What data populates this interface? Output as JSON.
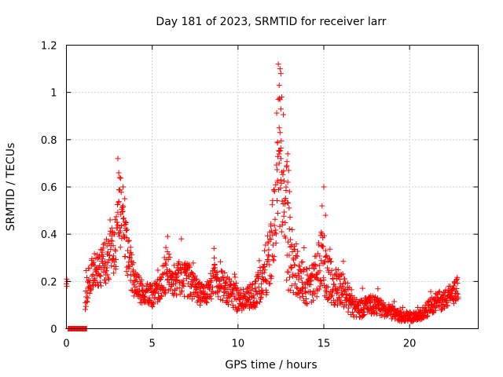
{
  "chart_data": {
    "type": "scatter",
    "title": "Day 181 of 2023, SRMTID for receiver larr",
    "xlabel": "GPS time / hours",
    "ylabel": "SRMTID / TECUs",
    "xlim": [
      0,
      24
    ],
    "ylim": [
      0,
      1.2
    ],
    "xticks": [
      0,
      5,
      10,
      15,
      20
    ],
    "yticks": [
      0,
      0.2,
      0.4,
      0.6,
      0.8,
      1.0,
      1.2
    ],
    "xtick_labels": [
      "0",
      "5",
      "10",
      "15",
      "20"
    ],
    "ytick_labels": [
      "0",
      "0.2",
      "0.4",
      "0.6",
      "0.8",
      "1",
      "1.2"
    ],
    "grid": true,
    "marker": "+",
    "series": [
      {
        "name": "SRMTID",
        "color": "#ff0000",
        "profile": [
          [
            0.0,
            0.2,
            0.02
          ],
          [
            0.15,
            0.2,
            0.02
          ],
          [
            1.1,
            0.16,
            0.08
          ],
          [
            1.5,
            0.24,
            0.07
          ],
          [
            2.0,
            0.26,
            0.08
          ],
          [
            2.5,
            0.3,
            0.1
          ],
          [
            2.9,
            0.38,
            0.14
          ],
          [
            3.1,
            0.5,
            0.16
          ],
          [
            3.3,
            0.42,
            0.12
          ],
          [
            3.6,
            0.3,
            0.1
          ],
          [
            4.0,
            0.18,
            0.06
          ],
          [
            4.5,
            0.15,
            0.05
          ],
          [
            5.0,
            0.14,
            0.05
          ],
          [
            5.5,
            0.17,
            0.05
          ],
          [
            5.8,
            0.25,
            0.1
          ],
          [
            6.2,
            0.2,
            0.07
          ],
          [
            6.7,
            0.22,
            0.08
          ],
          [
            7.2,
            0.2,
            0.07
          ],
          [
            7.7,
            0.15,
            0.05
          ],
          [
            8.2,
            0.15,
            0.05
          ],
          [
            8.6,
            0.22,
            0.08
          ],
          [
            9.0,
            0.18,
            0.07
          ],
          [
            9.5,
            0.16,
            0.06
          ],
          [
            10.0,
            0.12,
            0.05
          ],
          [
            10.5,
            0.13,
            0.05
          ],
          [
            11.0,
            0.15,
            0.06
          ],
          [
            11.5,
            0.22,
            0.1
          ],
          [
            11.9,
            0.32,
            0.14
          ],
          [
            12.2,
            0.5,
            0.2
          ],
          [
            12.4,
            0.75,
            0.3
          ],
          [
            12.6,
            0.5,
            0.22
          ],
          [
            12.9,
            0.35,
            0.2
          ],
          [
            13.2,
            0.28,
            0.14
          ],
          [
            13.6,
            0.22,
            0.1
          ],
          [
            14.0,
            0.18,
            0.08
          ],
          [
            14.5,
            0.2,
            0.08
          ],
          [
            14.9,
            0.3,
            0.14
          ],
          [
            15.2,
            0.22,
            0.1
          ],
          [
            15.6,
            0.18,
            0.08
          ],
          [
            16.0,
            0.18,
            0.08
          ],
          [
            16.5,
            0.12,
            0.06
          ],
          [
            17.0,
            0.08,
            0.04
          ],
          [
            17.5,
            0.1,
            0.04
          ],
          [
            18.0,
            0.1,
            0.04
          ],
          [
            18.5,
            0.08,
            0.03
          ],
          [
            19.0,
            0.07,
            0.03
          ],
          [
            19.5,
            0.05,
            0.02
          ],
          [
            20.0,
            0.05,
            0.02
          ],
          [
            20.5,
            0.05,
            0.02
          ],
          [
            21.0,
            0.08,
            0.03
          ],
          [
            21.5,
            0.11,
            0.04
          ],
          [
            22.0,
            0.12,
            0.04
          ],
          [
            22.5,
            0.15,
            0.05
          ],
          [
            22.8,
            0.17,
            0.05
          ]
        ],
        "peaks": [
          [
            3.0,
            0.72
          ],
          [
            3.05,
            0.66
          ],
          [
            3.1,
            0.64
          ],
          [
            3.3,
            0.6
          ],
          [
            3.4,
            0.55
          ],
          [
            5.9,
            0.39
          ],
          [
            6.7,
            0.38
          ],
          [
            8.6,
            0.34
          ],
          [
            12.35,
            1.12
          ],
          [
            12.45,
            1.1
          ],
          [
            12.5,
            1.08
          ],
          [
            12.4,
            1.03
          ],
          [
            12.55,
            0.98
          ],
          [
            12.5,
            0.93
          ],
          [
            12.4,
            0.85
          ],
          [
            12.45,
            0.83
          ],
          [
            12.3,
            0.79
          ],
          [
            12.5,
            0.72
          ],
          [
            12.4,
            0.7
          ],
          [
            12.3,
            0.62
          ],
          [
            12.9,
            0.74
          ],
          [
            12.85,
            0.69
          ],
          [
            12.95,
            0.67
          ],
          [
            12.9,
            0.62
          ],
          [
            13.0,
            0.58
          ],
          [
            15.0,
            0.6
          ],
          [
            14.9,
            0.52
          ],
          [
            15.1,
            0.48
          ]
        ],
        "zero_band": [
          0.1,
          1.2
        ]
      }
    ]
  }
}
